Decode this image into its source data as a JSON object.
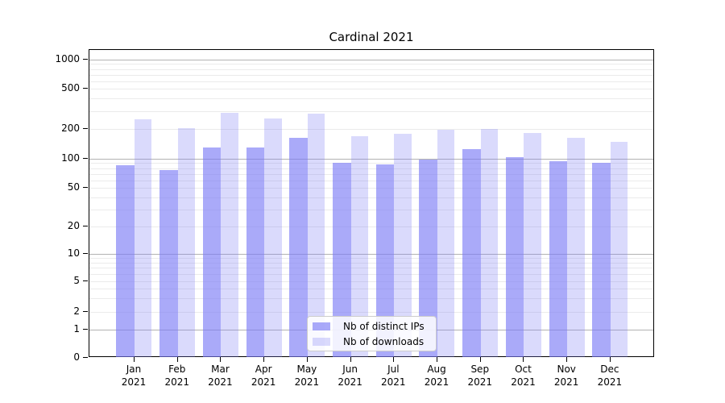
{
  "title": "Cardinal 2021",
  "chart_data": {
    "type": "bar",
    "title": "Cardinal 2021",
    "categories": [
      "Jan 2021",
      "Feb 2021",
      "Mar 2021",
      "Apr 2021",
      "May 2021",
      "Jun 2021",
      "Jul 2021",
      "Aug 2021",
      "Sep 2021",
      "Oct 2021",
      "Nov 2021",
      "Dec 2021"
    ],
    "series": [
      {
        "name": "Nb of distinct IPs",
        "color": "rgba(121,121,246,0.63)",
        "values": [
          86,
          76,
          129,
          131,
          162,
          91,
          88,
          99,
          125,
          104,
          94,
          91
        ]
      },
      {
        "name": "Nb of downloads",
        "color": "rgba(121,121,246,0.28)",
        "values": [
          250,
          205,
          290,
          255,
          285,
          170,
          179,
          196,
          200,
          182,
          163,
          148
        ]
      }
    ],
    "xlabel": "",
    "ylabel": "",
    "yscale": "symlog",
    "yticks": [
      0,
      1,
      2,
      5,
      10,
      20,
      50,
      100,
      200,
      500,
      1000
    ],
    "ylim": [
      0,
      1400
    ],
    "grid": true,
    "grid_major_color": "#b3b3b3",
    "grid_minor_color": "#ebebeb",
    "legend_position": "lower center",
    "background_color": "#ffffff",
    "text_color": "#000000"
  },
  "legend": {
    "items": [
      {
        "label": "Nb of distinct IPs"
      },
      {
        "label": "Nb of downloads"
      }
    ]
  }
}
